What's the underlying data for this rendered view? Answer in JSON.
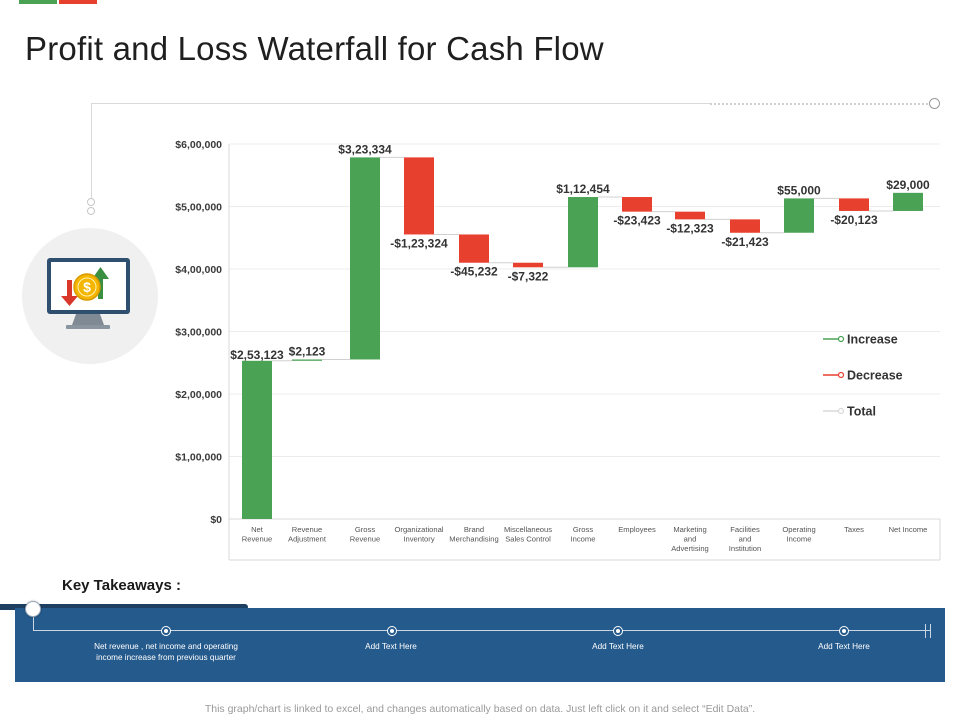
{
  "page": {
    "title": "Profit and Loss Waterfall for Cash Flow",
    "top_tab_colors": [
      "#4aa254",
      "#e8402e"
    ]
  },
  "chart_data": {
    "type": "waterfall",
    "title": "",
    "xlabel": "",
    "ylabel": "",
    "ylim": [
      0,
      600000
    ],
    "yticks": [
      0,
      100000,
      200000,
      300000,
      400000,
      500000,
      600000
    ],
    "ytick_labels": [
      "$0",
      "$1,00,000",
      "$2,00,000",
      "$3,00,000",
      "$4,00,000",
      "$5,00,000",
      "$6,00,000"
    ],
    "grid": true,
    "categories": [
      "Net Revenue",
      "Revenue Adjustment",
      "Gross Revenue",
      "Organizational Inventory",
      "Brand Merchandising",
      "Miscellaneous Sales Control",
      "Gross Income",
      "Employees",
      "Marketing and Advertising",
      "Facilities and Institution",
      "Operating Income",
      "Taxes",
      "Net Income"
    ],
    "category_lines": [
      [
        "Net",
        "Revenue"
      ],
      [
        "Revenue",
        "Adjustment"
      ],
      [
        "Gross",
        "Revenue"
      ],
      [
        "Organizational",
        "Inventory"
      ],
      [
        "Brand",
        "Merchandising"
      ],
      [
        "Miscellaneous",
        "Sales Control"
      ],
      [
        "Gross",
        "Income"
      ],
      [
        "Employees"
      ],
      [
        "Marketing",
        "and",
        "Advertising"
      ],
      [
        "Facilities",
        "and",
        "Institution"
      ],
      [
        "Operating",
        "Income"
      ],
      [
        "Taxes"
      ],
      [
        "Net Income"
      ]
    ],
    "values": [
      253123,
      2123,
      323334,
      -123324,
      -45232,
      -7322,
      112454,
      -23423,
      -12323,
      -21423,
      55000,
      -20123,
      29000
    ],
    "data_labels": [
      "$2,53,123",
      "$2,123",
      "$3,23,334",
      "-$1,23,324",
      "-$45,232",
      "-$7,322",
      "$1,12,454",
      "-$23,423",
      "-$12,323",
      "-$21,423",
      "$55,000",
      "-$20,123",
      "$29,000"
    ],
    "series": [
      {
        "name": "Increase",
        "color": "#4aa254"
      },
      {
        "name": "Decrease",
        "color": "#e8402e"
      },
      {
        "name": "Total",
        "color": "#d9d9d9"
      }
    ],
    "legend_position": "right"
  },
  "icon": {
    "name": "cash-flow-monitor-icon",
    "symbol": "$"
  },
  "takeaways": {
    "title": "Key Takeaways :",
    "panel_color": "#255a8c",
    "items": [
      "Net revenue , net income and operating income increase from previous quarter",
      "Add Text Here",
      "Add Text Here",
      "Add Text Here"
    ]
  },
  "footer": {
    "note": "This graph/chart is linked to excel, and changes automatically based on data. Just left click on it and select “Edit Data”."
  }
}
